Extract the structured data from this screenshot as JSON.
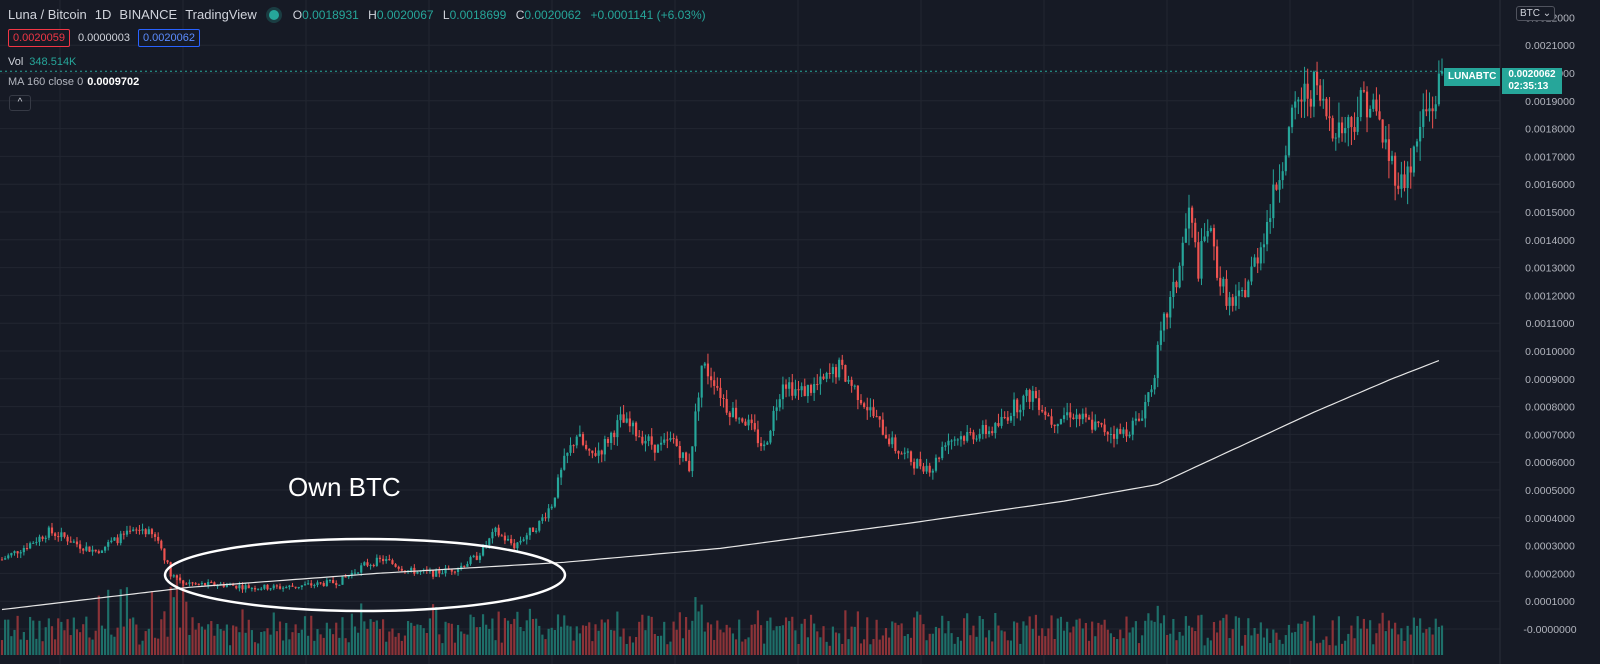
{
  "header": {
    "symbol": "Luna / Bitcoin",
    "interval": "1D",
    "exchange": "BINANCE",
    "source": "TradingView",
    "ohlc": {
      "o_label": "O",
      "o": "0.0018931",
      "h_label": "H",
      "h": "0.0020067",
      "l_label": "L",
      "l": "0.0018699",
      "c_label": "C",
      "c": "0.0020062",
      "change": "+0.0001141 (+6.03%)"
    },
    "bid": "0.0020059",
    "spread": "0.0000003",
    "ask": "0.0020062",
    "vol_label": "Vol",
    "vol_value": "348.514K",
    "ma_label": "MA 160 close 0",
    "ma_value": "0.0009702",
    "collapse_icon": "^",
    "currency_button": "BTC ⌄"
  },
  "price_tag": {
    "symbol": "LUNABTC",
    "price": "0.0020062",
    "countdown": "02:35:13"
  },
  "annotation": {
    "text": "Own BTC"
  },
  "colors": {
    "background": "#161a25",
    "up": "#26a69a",
    "down": "#ef5350",
    "volume_up": "#1e6f69",
    "volume_down": "#8c3338",
    "ma_line": "#e6e6e6",
    "grid": "#222631"
  },
  "chart_data": {
    "type": "candlestick",
    "y_axis": {
      "min": 0,
      "max": 0.0021,
      "ticks": [
        "0.0021000",
        "0.0020000",
        "0.0019000",
        "0.0018000",
        "0.0017000",
        "0.0016000",
        "0.0015000",
        "0.0014000",
        "0.0013000",
        "0.0012000",
        "0.0011000",
        "0.0010000",
        "0.0009000",
        "0.0008000",
        "0.0007000",
        "0.0006000",
        "0.0005000",
        "0.0004000",
        "0.0003000",
        "0.0002000",
        "0.0001000",
        "-0.0000000"
      ],
      "tick_values": [
        0.0021,
        0.002,
        0.0019,
        0.0018,
        0.0017,
        0.0016,
        0.0015,
        0.0014,
        0.0013,
        0.0012,
        0.0011,
        0.001,
        0.0009,
        0.0008,
        0.0007,
        0.0006,
        0.0005,
        0.0004,
        0.0003,
        0.0002,
        0.0001,
        0.0
      ],
      "top_partial_tick": "0.0022000"
    },
    "grid": true,
    "current_price": 0.0020062,
    "price_path": [
      [
        0,
        0.00025
      ],
      [
        8,
        0.0003
      ],
      [
        15,
        0.00035
      ],
      [
        20,
        0.00033
      ],
      [
        25,
        0.0003
      ],
      [
        30,
        0.00028
      ],
      [
        38,
        0.00033
      ],
      [
        45,
        0.00036
      ],
      [
        50,
        0.00032
      ],
      [
        54,
        0.0002
      ],
      [
        58,
        0.00017
      ],
      [
        62,
        0.00016
      ],
      [
        70,
        0.00016
      ],
      [
        80,
        0.00015
      ],
      [
        90,
        0.00015
      ],
      [
        100,
        0.00016
      ],
      [
        108,
        0.00017
      ],
      [
        116,
        0.00023
      ],
      [
        122,
        0.00025
      ],
      [
        130,
        0.00021
      ],
      [
        138,
        0.0002
      ],
      [
        146,
        0.00022
      ],
      [
        152,
        0.00026
      ],
      [
        158,
        0.00035
      ],
      [
        164,
        0.0003
      ],
      [
        172,
        0.00038
      ],
      [
        176,
        0.00045
      ],
      [
        180,
        0.0006
      ],
      [
        184,
        0.0007
      ],
      [
        188,
        0.00062
      ],
      [
        192,
        0.00065
      ],
      [
        198,
        0.00075
      ],
      [
        204,
        0.0007
      ],
      [
        210,
        0.00065
      ],
      [
        215,
        0.00068
      ],
      [
        220,
        0.00058
      ],
      [
        224,
        0.00095
      ],
      [
        228,
        0.0009
      ],
      [
        232,
        0.0008
      ],
      [
        238,
        0.00075
      ],
      [
        244,
        0.00065
      ],
      [
        250,
        0.0009
      ],
      [
        255,
        0.00085
      ],
      [
        262,
        0.00088
      ],
      [
        268,
        0.00094
      ],
      [
        274,
        0.00085
      ],
      [
        280,
        0.00075
      ],
      [
        286,
        0.00065
      ],
      [
        292,
        0.0006
      ],
      [
        298,
        0.00058
      ],
      [
        302,
        0.00068
      ],
      [
        310,
        0.0007
      ],
      [
        318,
        0.00072
      ],
      [
        324,
        0.0008
      ],
      [
        330,
        0.00085
      ],
      [
        336,
        0.00075
      ],
      [
        342,
        0.00078
      ],
      [
        348,
        0.00074
      ],
      [
        352,
        0.00072
      ],
      [
        358,
        0.0007
      ],
      [
        364,
        0.00075
      ],
      [
        368,
        0.00088
      ],
      [
        372,
        0.0011
      ],
      [
        376,
        0.00125
      ],
      [
        380,
        0.0015
      ],
      [
        383,
        0.0013
      ],
      [
        386,
        0.00145
      ],
      [
        390,
        0.00125
      ],
      [
        394,
        0.00115
      ],
      [
        398,
        0.00122
      ],
      [
        402,
        0.00135
      ],
      [
        406,
        0.0015
      ],
      [
        410,
        0.0017
      ],
      [
        415,
        0.0019
      ],
      [
        420,
        0.00195
      ],
      [
        424,
        0.00185
      ],
      [
        428,
        0.0018
      ],
      [
        432,
        0.00182
      ],
      [
        436,
        0.00192
      ],
      [
        440,
        0.00185
      ],
      [
        444,
        0.0017
      ],
      [
        448,
        0.0016
      ],
      [
        452,
        0.0017
      ],
      [
        455,
        0.00185
      ],
      [
        458,
        0.00188
      ],
      [
        461,
        0.002
      ]
    ],
    "ma_path": [
      [
        0,
        7e-05
      ],
      [
        60,
        0.00015
      ],
      [
        120,
        0.0002
      ],
      [
        180,
        0.00024
      ],
      [
        230,
        0.00029
      ],
      [
        290,
        0.00038
      ],
      [
        340,
        0.00046
      ],
      [
        370,
        0.00052
      ],
      [
        395,
        0.00065
      ],
      [
        420,
        0.00078
      ],
      [
        445,
        0.0009
      ],
      [
        461,
        0.00097
      ]
    ],
    "n_candles": 462,
    "volume_note": "volume histogram along bottom, colored by candle direction"
  }
}
